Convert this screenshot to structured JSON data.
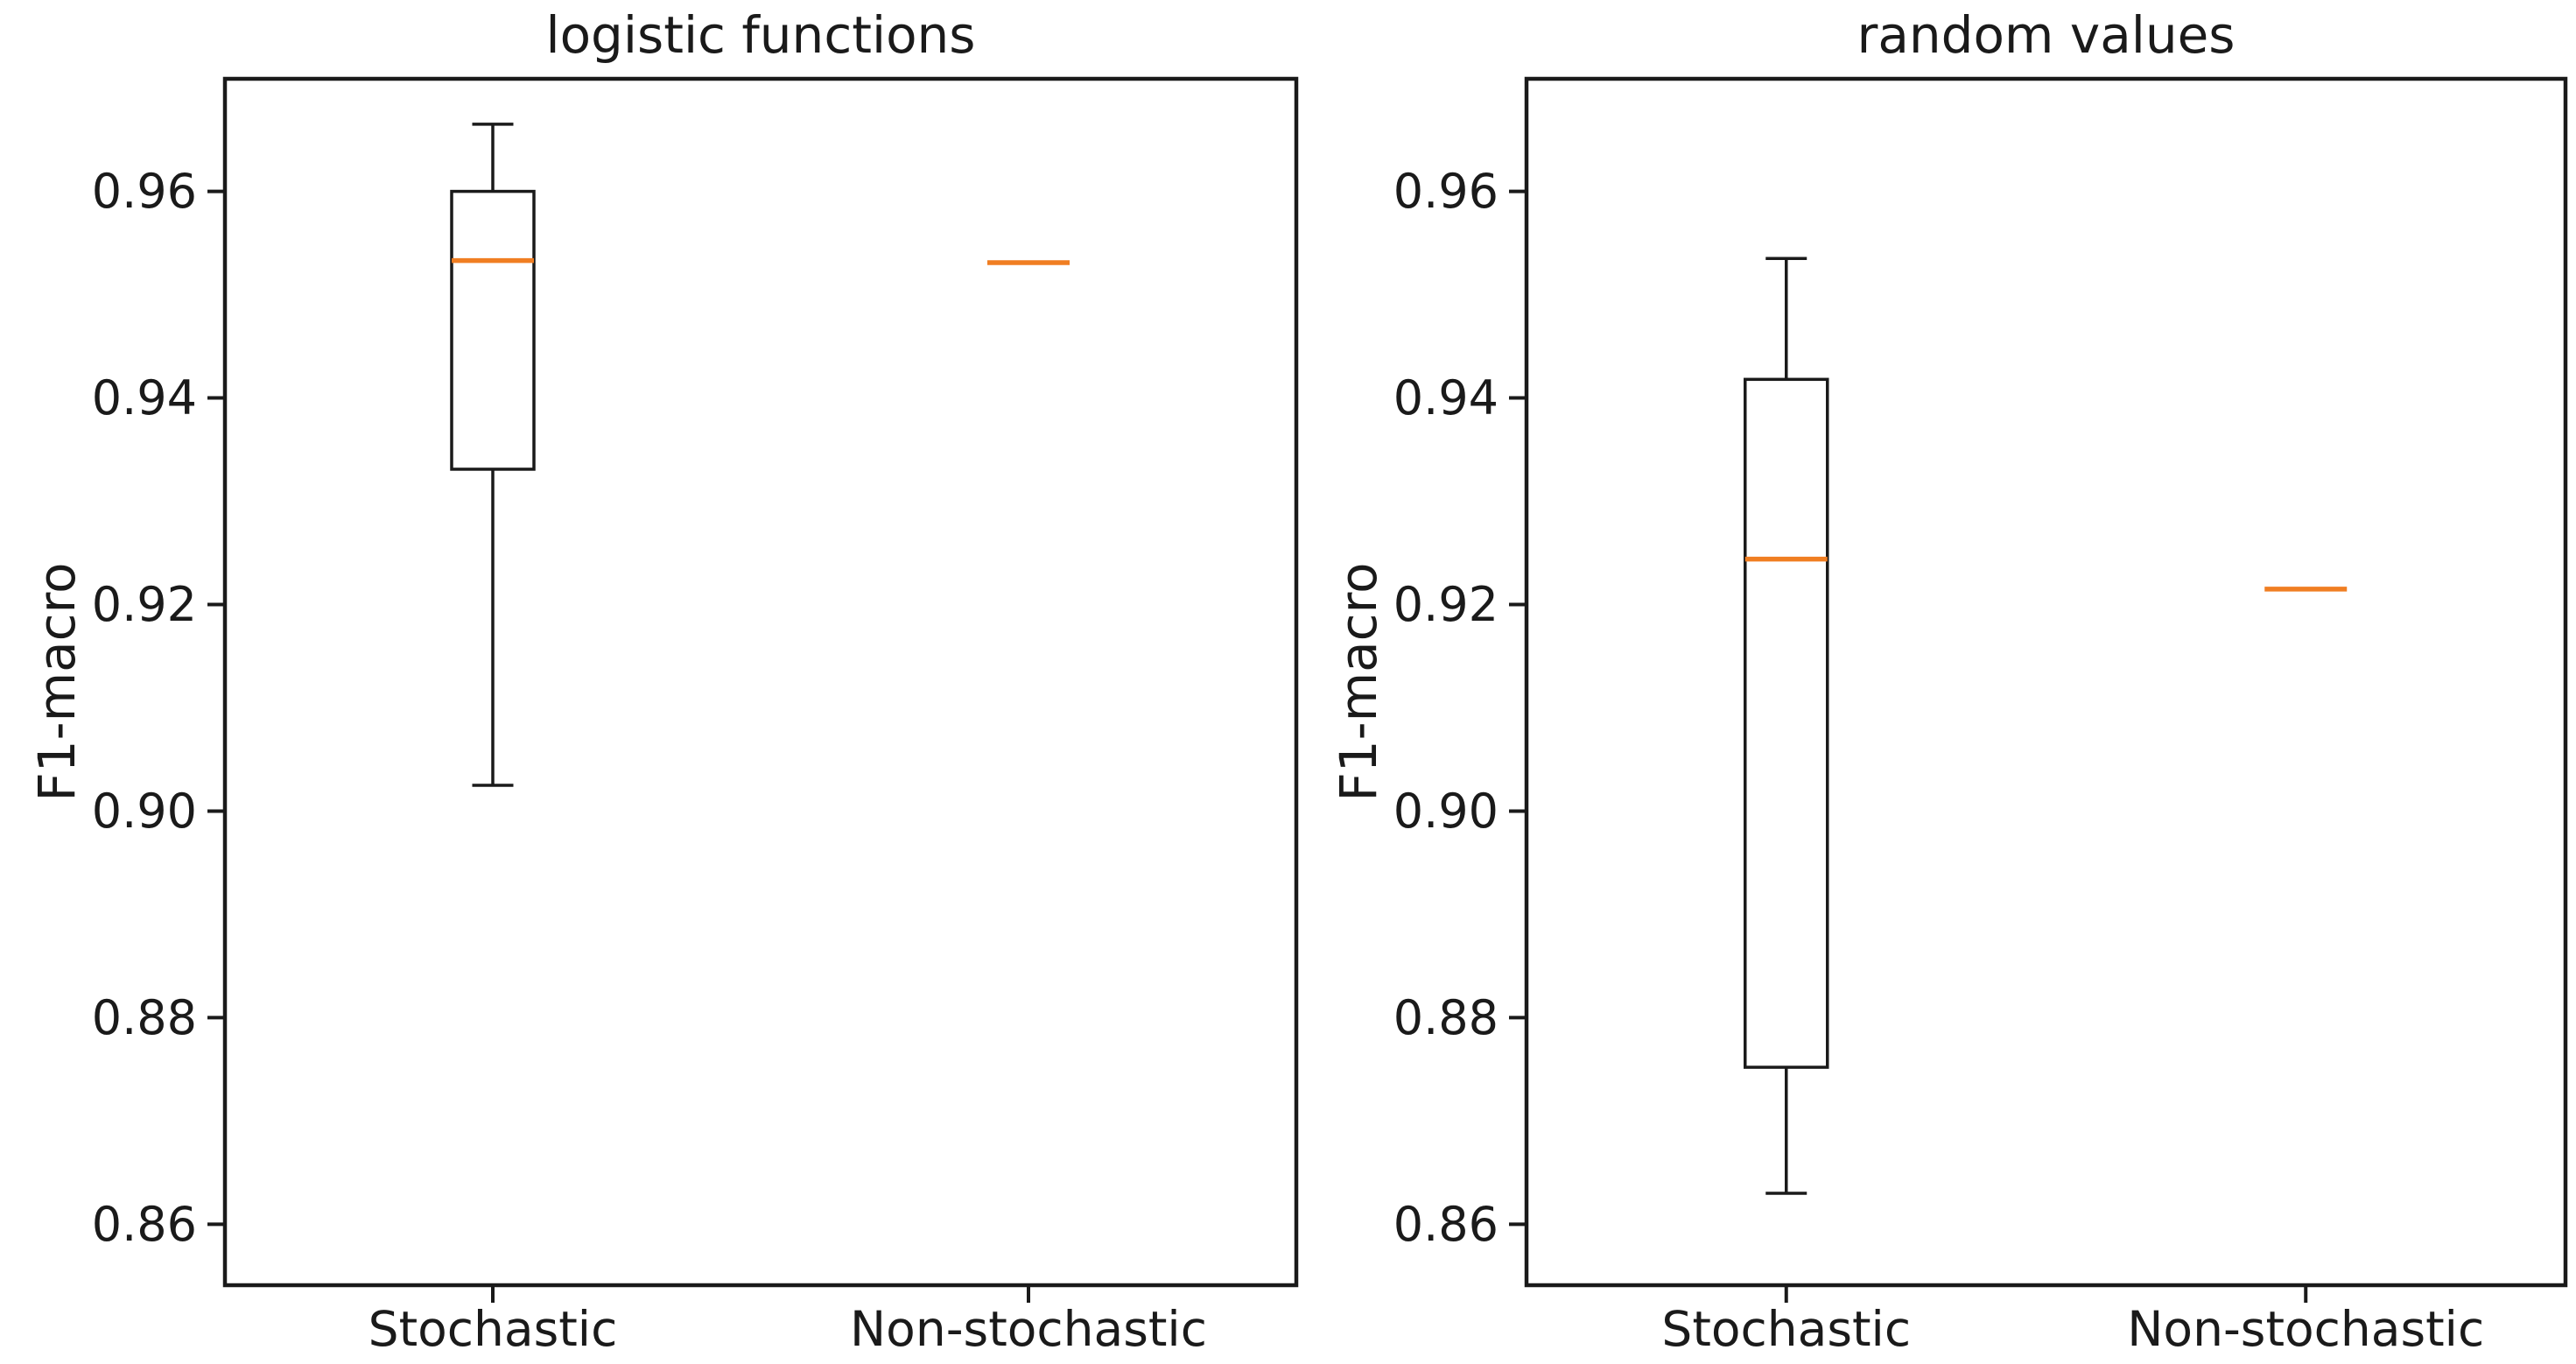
{
  "figure": {
    "background_color": "#ffffff",
    "text_color": "#1a1a1a",
    "accent_color": "#f07e22"
  },
  "chart_data": [
    {
      "type": "boxplot",
      "title": "logistic functions",
      "ylabel": "F1-macro",
      "categories": [
        "Stochastic",
        "Non-stochastic"
      ],
      "ylim": [
        0.8541,
        0.9709
      ],
      "yticks": [
        0.86,
        0.88,
        0.9,
        0.92,
        0.94,
        0.96
      ],
      "ytick_labels": [
        "0.86",
        "0.88",
        "0.90",
        "0.92",
        "0.94",
        "0.96"
      ],
      "grid": false,
      "boxes": [
        {
          "category": "Stochastic",
          "whislo": 0.9025,
          "q1": 0.9331,
          "med": 0.9533,
          "q3": 0.96,
          "whishi": 0.9665
        },
        {
          "category": "Non-stochastic",
          "whislo": 0.9531,
          "q1": 0.9531,
          "med": 0.9531,
          "q3": 0.9531,
          "whishi": 0.9531
        }
      ],
      "median_color": "#f07e22",
      "line_color": "#1a1a1a"
    },
    {
      "type": "boxplot",
      "title": "random values",
      "ylabel": "F1-macro",
      "categories": [
        "Stochastic",
        "Non-stochastic"
      ],
      "ylim": [
        0.8541,
        0.9709
      ],
      "yticks": [
        0.86,
        0.88,
        0.9,
        0.92,
        0.94,
        0.96
      ],
      "ytick_labels": [
        "0.86",
        "0.88",
        "0.90",
        "0.92",
        "0.94",
        "0.96"
      ],
      "grid": false,
      "boxes": [
        {
          "category": "Stochastic",
          "whislo": 0.863,
          "q1": 0.8752,
          "med": 0.9244,
          "q3": 0.9418,
          "whishi": 0.9535
        },
        {
          "category": "Non-stochastic",
          "whislo": 0.9215,
          "q1": 0.9215,
          "med": 0.9215,
          "q3": 0.9215,
          "whishi": 0.9215
        }
      ],
      "median_color": "#f07e22",
      "line_color": "#1a1a1a"
    }
  ]
}
